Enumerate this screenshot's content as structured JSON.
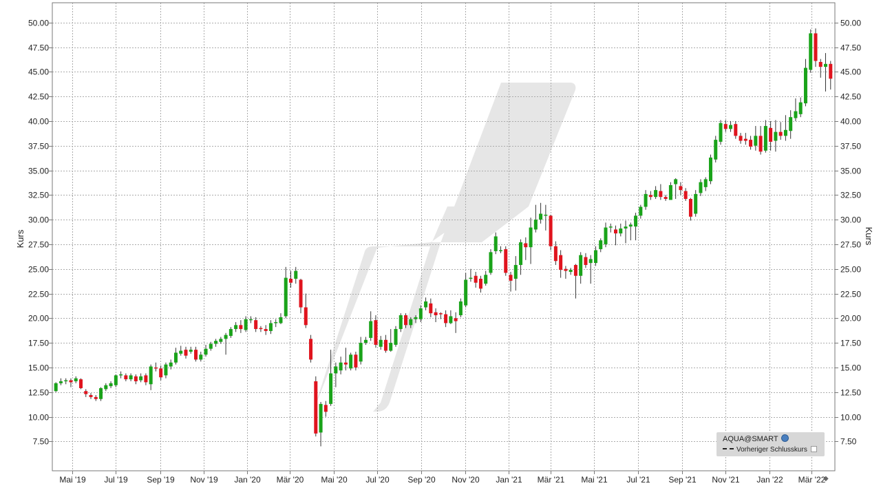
{
  "chart_data": {
    "type": "candlestick",
    "ylabel_left": "Kurs",
    "ylabel_right": "Kurs",
    "ylim": [
      5.0,
      51.5
    ],
    "y_ticks": [
      "50.00",
      "47.50",
      "45.00",
      "42.50",
      "40.00",
      "37.50",
      "35.00",
      "32.50",
      "30.00",
      "27.50",
      "25.00",
      "22.50",
      "20.00",
      "17.50",
      "15.00",
      "12.50",
      "10.00",
      "7.50"
    ],
    "x_ticks": [
      "Mai '19",
      "Jul '19",
      "Sep '19",
      "Nov '19",
      "Jan '20",
      "Mär '20",
      "Mai '20",
      "Jul '20",
      "Sep '20",
      "Nov '20",
      "Jan '21",
      "Mär '21",
      "Mai '21",
      "Jul '21",
      "Sep '21",
      "Nov '21",
      "Jan '22",
      "Mär '22"
    ],
    "x_start": "2019-04-03",
    "x_end": "2022-04-03",
    "interval": "weekly",
    "up_color": "#1aa31a",
    "down_color": "#e0141e",
    "candles": [
      [
        "2019-04-08",
        12.6,
        13.4,
        12.5,
        13.5
      ],
      [
        "2019-04-15",
        13.4,
        13.6,
        13.2,
        13.9
      ],
      [
        "2019-04-22",
        13.6,
        13.7,
        13.3,
        13.9
      ],
      [
        "2019-04-29",
        13.7,
        13.5,
        13.0,
        13.9
      ],
      [
        "2019-05-06",
        13.6,
        13.9,
        13.4,
        14.1
      ],
      [
        "2019-05-13",
        13.8,
        12.9,
        12.8,
        13.9
      ],
      [
        "2019-05-20",
        12.6,
        12.3,
        12.0,
        12.8
      ],
      [
        "2019-05-27",
        12.2,
        12.0,
        11.8,
        12.4
      ],
      [
        "2019-06-03",
        12.0,
        11.8,
        11.6,
        12.2
      ],
      [
        "2019-06-10",
        11.8,
        12.9,
        11.6,
        13.0
      ],
      [
        "2019-06-17",
        12.8,
        13.2,
        12.6,
        13.4
      ],
      [
        "2019-06-24",
        13.1,
        13.4,
        12.9,
        13.6
      ],
      [
        "2019-07-01",
        13.2,
        14.2,
        13.0,
        14.3
      ],
      [
        "2019-07-08",
        14.2,
        14.3,
        13.9,
        14.6
      ],
      [
        "2019-07-15",
        14.2,
        13.8,
        13.6,
        14.4
      ],
      [
        "2019-07-22",
        13.8,
        14.2,
        13.6,
        14.4
      ],
      [
        "2019-07-29",
        14.1,
        13.6,
        13.3,
        14.3
      ],
      [
        "2019-08-05",
        13.7,
        14.1,
        13.5,
        14.4
      ],
      [
        "2019-08-12",
        14.2,
        13.5,
        13.2,
        14.4
      ],
      [
        "2019-08-19",
        13.3,
        15.1,
        12.7,
        15.3
      ],
      [
        "2019-08-26",
        15.0,
        14.9,
        14.6,
        15.5
      ],
      [
        "2019-09-02",
        14.9,
        14.0,
        13.7,
        15.2
      ],
      [
        "2019-09-09",
        14.2,
        15.3,
        13.9,
        15.5
      ],
      [
        "2019-09-16",
        15.1,
        15.5,
        14.8,
        15.8
      ],
      [
        "2019-09-23",
        15.5,
        16.5,
        15.3,
        17.0
      ],
      [
        "2019-09-30",
        16.4,
        16.7,
        16.2,
        17.2
      ],
      [
        "2019-10-07",
        16.8,
        16.2,
        15.9,
        17.1
      ],
      [
        "2019-10-14",
        16.6,
        16.8,
        16.4,
        17.1
      ],
      [
        "2019-10-21",
        16.8,
        15.8,
        15.6,
        17.1
      ],
      [
        "2019-10-28",
        15.8,
        16.3,
        15.6,
        16.6
      ],
      [
        "2019-11-04",
        16.3,
        16.9,
        16.1,
        17.3
      ],
      [
        "2019-11-11",
        16.9,
        17.4,
        16.7,
        17.6
      ],
      [
        "2019-11-18",
        17.4,
        17.7,
        17.1,
        17.9
      ],
      [
        "2019-11-25",
        17.6,
        17.9,
        17.4,
        18.1
      ],
      [
        "2019-12-02",
        17.9,
        18.3,
        16.3,
        18.5
      ],
      [
        "2019-12-09",
        18.2,
        18.9,
        18.0,
        19.1
      ],
      [
        "2019-12-16",
        18.9,
        19.3,
        18.6,
        19.6
      ],
      [
        "2019-12-23",
        19.3,
        18.9,
        18.5,
        19.8
      ],
      [
        "2019-12-30",
        18.8,
        19.9,
        18.6,
        20.2
      ],
      [
        "2020-01-06",
        19.8,
        19.9,
        19.5,
        20.2
      ],
      [
        "2020-01-13",
        19.8,
        18.9,
        18.6,
        20.1
      ],
      [
        "2020-01-20",
        19.0,
        18.9,
        18.6,
        19.2
      ],
      [
        "2020-01-27",
        18.9,
        18.7,
        18.3,
        19.3
      ],
      [
        "2020-02-03",
        18.7,
        19.5,
        18.4,
        19.8
      ],
      [
        "2020-02-10",
        19.5,
        19.6,
        19.1,
        19.9
      ],
      [
        "2020-02-17",
        19.5,
        20.1,
        19.4,
        20.5
      ],
      [
        "2020-02-24",
        20.2,
        24.1,
        20.0,
        25.2
      ],
      [
        "2020-03-02",
        24.0,
        23.6,
        23.1,
        24.8
      ],
      [
        "2020-03-09",
        24.0,
        24.8,
        23.5,
        25.2
      ],
      [
        "2020-03-16",
        23.9,
        21.1,
        20.5,
        24.0
      ],
      [
        "2020-03-23",
        21.1,
        19.3,
        19.0,
        22.5
      ],
      [
        "2020-03-30",
        17.9,
        15.8,
        15.5,
        18.3
      ],
      [
        "2020-04-06",
        13.6,
        8.3,
        8.0,
        14.1
      ],
      [
        "2020-04-13",
        8.4,
        11.3,
        7.0,
        11.5
      ],
      [
        "2020-04-20",
        11.2,
        10.5,
        10.0,
        11.6
      ],
      [
        "2020-04-27",
        11.3,
        14.4,
        11.1,
        16.8
      ],
      [
        "2020-05-04",
        14.4,
        15.1,
        13.0,
        15.5
      ],
      [
        "2020-05-11",
        14.7,
        15.5,
        14.3,
        16.1
      ],
      [
        "2020-05-18",
        15.5,
        15.3,
        14.7,
        17.0
      ],
      [
        "2020-05-25",
        14.9,
        16.3,
        14.7,
        16.5
      ],
      [
        "2020-06-01",
        16.3,
        15.0,
        14.7,
        16.6
      ],
      [
        "2020-06-08",
        15.6,
        17.5,
        15.3,
        18.1
      ],
      [
        "2020-06-15",
        17.5,
        17.8,
        17.3,
        18.1
      ],
      [
        "2020-06-22",
        18.0,
        19.7,
        17.7,
        20.7
      ],
      [
        "2020-06-29",
        19.8,
        17.3,
        17.0,
        20.3
      ],
      [
        "2020-07-06",
        17.1,
        17.8,
        16.8,
        18.2
      ],
      [
        "2020-07-13",
        17.8,
        16.7,
        16.5,
        18.3
      ],
      [
        "2020-07-20",
        16.7,
        17.5,
        16.6,
        18.9
      ],
      [
        "2020-07-27",
        17.3,
        18.9,
        17.1,
        19.2
      ],
      [
        "2020-08-03",
        18.9,
        20.3,
        18.6,
        20.5
      ],
      [
        "2020-08-10",
        20.3,
        19.3,
        19.0,
        20.5
      ],
      [
        "2020-08-17",
        19.3,
        19.9,
        19.0,
        20.1
      ],
      [
        "2020-08-24",
        19.9,
        20.1,
        19.5,
        20.3
      ],
      [
        "2020-08-31",
        19.9,
        21.0,
        19.6,
        21.3
      ],
      [
        "2020-09-07",
        21.1,
        21.7,
        20.8,
        22.1
      ],
      [
        "2020-09-14",
        21.5,
        20.5,
        20.1,
        22.0
      ],
      [
        "2020-09-21",
        20.6,
        20.3,
        19.6,
        21.0
      ],
      [
        "2020-09-28",
        20.5,
        20.4,
        19.9,
        20.6
      ],
      [
        "2020-10-05",
        20.4,
        19.5,
        19.1,
        20.8
      ],
      [
        "2020-10-12",
        19.5,
        20.2,
        19.4,
        20.8
      ],
      [
        "2020-10-19",
        20.0,
        19.7,
        18.5,
        20.6
      ],
      [
        "2020-10-26",
        20.3,
        21.7,
        20.1,
        22.0
      ],
      [
        "2020-11-02",
        21.3,
        23.9,
        21.1,
        24.6
      ],
      [
        "2020-11-09",
        24.0,
        24.1,
        23.7,
        25.0
      ],
      [
        "2020-11-16",
        24.3,
        23.6,
        23.1,
        24.7
      ],
      [
        "2020-11-23",
        24.0,
        23.0,
        22.6,
        24.3
      ],
      [
        "2020-11-30",
        23.5,
        24.4,
        23.3,
        24.8
      ],
      [
        "2020-12-07",
        24.6,
        26.7,
        24.4,
        27.0
      ],
      [
        "2020-12-14",
        26.8,
        28.3,
        26.5,
        28.7
      ],
      [
        "2020-12-21",
        26.9,
        26.9,
        26.6,
        27.3
      ],
      [
        "2020-12-28",
        27.0,
        24.6,
        24.3,
        27.3
      ],
      [
        "2021-01-04",
        24.4,
        23.8,
        22.7,
        24.7
      ],
      [
        "2021-01-11",
        24.0,
        25.4,
        22.8,
        26.3
      ],
      [
        "2021-01-18",
        25.4,
        27.7,
        24.4,
        28.0
      ],
      [
        "2021-01-25",
        27.6,
        27.2,
        25.9,
        28.2
      ],
      [
        "2021-02-01",
        27.2,
        29.2,
        25.5,
        30.2
      ],
      [
        "2021-02-08",
        29.0,
        30.0,
        28.7,
        31.5
      ],
      [
        "2021-02-15",
        30.0,
        30.6,
        29.6,
        31.7
      ],
      [
        "2021-02-22",
        30.4,
        30.5,
        28.9,
        31.5
      ],
      [
        "2021-03-01",
        30.4,
        27.3,
        26.9,
        30.5
      ],
      [
        "2021-03-08",
        27.3,
        25.8,
        25.4,
        27.8
      ],
      [
        "2021-03-15",
        26.4,
        24.9,
        24.1,
        26.9
      ],
      [
        "2021-03-22",
        25.0,
        24.8,
        24.0,
        25.3
      ],
      [
        "2021-03-29",
        24.7,
        24.9,
        24.4,
        25.1
      ],
      [
        "2021-04-05",
        25.4,
        24.3,
        22.0,
        25.5
      ],
      [
        "2021-04-12",
        24.3,
        26.4,
        23.5,
        26.7
      ],
      [
        "2021-04-19",
        26.2,
        25.4,
        25.1,
        26.6
      ],
      [
        "2021-04-26",
        25.6,
        26.0,
        23.5,
        26.4
      ],
      [
        "2021-05-03",
        25.6,
        26.9,
        25.3,
        27.3
      ],
      [
        "2021-05-10",
        27.0,
        27.9,
        26.7,
        28.1
      ],
      [
        "2021-05-17",
        27.5,
        29.2,
        27.2,
        29.7
      ],
      [
        "2021-05-24",
        29.2,
        29.3,
        28.7,
        29.6
      ],
      [
        "2021-05-31",
        29.0,
        28.6,
        27.4,
        29.4
      ],
      [
        "2021-06-07",
        28.6,
        29.1,
        28.3,
        29.6
      ],
      [
        "2021-06-14",
        29.1,
        29.3,
        27.6,
        29.9
      ],
      [
        "2021-06-21",
        29.3,
        29.5,
        27.9,
        29.7
      ],
      [
        "2021-06-28",
        29.3,
        30.4,
        27.9,
        30.7
      ],
      [
        "2021-07-05",
        30.4,
        31.3,
        30.1,
        31.5
      ],
      [
        "2021-07-12",
        31.3,
        32.6,
        31.0,
        33.0
      ],
      [
        "2021-07-19",
        32.5,
        32.3,
        32.0,
        32.9
      ],
      [
        "2021-07-26",
        32.3,
        33.0,
        32.1,
        33.4
      ],
      [
        "2021-08-02",
        32.9,
        32.3,
        32.0,
        33.6
      ],
      [
        "2021-08-09",
        32.3,
        32.1,
        31.9,
        32.5
      ],
      [
        "2021-08-16",
        32.0,
        33.5,
        32.0,
        33.8
      ],
      [
        "2021-08-23",
        33.6,
        34.1,
        32.1,
        34.2
      ],
      [
        "2021-08-30",
        33.4,
        33.0,
        32.5,
        33.8
      ],
      [
        "2021-09-06",
        32.9,
        32.1,
        31.9,
        33.2
      ],
      [
        "2021-09-13",
        32.1,
        30.3,
        29.9,
        32.2
      ],
      [
        "2021-09-20",
        30.6,
        32.6,
        30.3,
        33.0
      ],
      [
        "2021-09-27",
        32.7,
        33.8,
        32.4,
        34.1
      ],
      [
        "2021-10-04",
        33.3,
        34.1,
        32.9,
        34.3
      ],
      [
        "2021-10-11",
        33.9,
        36.3,
        33.6,
        36.6
      ],
      [
        "2021-10-18",
        36.1,
        38.1,
        35.8,
        38.5
      ],
      [
        "2021-10-25",
        37.9,
        39.8,
        37.6,
        40.1
      ],
      [
        "2021-11-01",
        39.7,
        39.2,
        38.9,
        40.1
      ],
      [
        "2021-11-08",
        39.2,
        39.6,
        38.9,
        40.0
      ],
      [
        "2021-11-15",
        39.7,
        38.5,
        38.2,
        40.0
      ],
      [
        "2021-11-22",
        38.5,
        38.0,
        37.7,
        38.8
      ],
      [
        "2021-11-29",
        38.2,
        38.0,
        37.6,
        38.8
      ],
      [
        "2021-12-06",
        38.1,
        37.4,
        37.1,
        38.5
      ],
      [
        "2021-12-13",
        37.5,
        38.5,
        37.0,
        39.5
      ],
      [
        "2021-12-20",
        38.5,
        36.9,
        36.6,
        39.5
      ],
      [
        "2021-12-27",
        37.0,
        39.5,
        36.8,
        40.1
      ],
      [
        "2022-01-03",
        39.3,
        37.9,
        37.0,
        40.0
      ],
      [
        "2022-01-10",
        38.0,
        38.9,
        36.9,
        40.1
      ],
      [
        "2022-01-17",
        38.9,
        38.5,
        38.1,
        39.9
      ],
      [
        "2022-01-24",
        38.5,
        39.1,
        38.0,
        40.6
      ],
      [
        "2022-01-31",
        39.0,
        40.4,
        38.2,
        41.1
      ],
      [
        "2022-02-07",
        40.3,
        41.0,
        40.0,
        42.3
      ],
      [
        "2022-02-14",
        40.7,
        41.9,
        40.4,
        42.4
      ],
      [
        "2022-02-21",
        41.8,
        45.4,
        41.5,
        46.3
      ],
      [
        "2022-02-28",
        45.2,
        48.9,
        44.9,
        49.3
      ],
      [
        "2022-03-07",
        48.9,
        46.1,
        45.5,
        49.4
      ],
      [
        "2022-03-14",
        46.0,
        45.5,
        44.4,
        46.3
      ],
      [
        "2022-03-21",
        45.5,
        45.8,
        43.0,
        46.9
      ],
      [
        "2022-03-28",
        45.8,
        44.3,
        43.2,
        46.1
      ]
    ]
  },
  "legend": {
    "symbol_label": "AQUA@SMART",
    "prev_close_label": "Vorheriger Schlusskurs"
  },
  "colors": {
    "grid": "#aaaaaa",
    "axis": "#777777",
    "watermark": "#e6e6e6"
  }
}
